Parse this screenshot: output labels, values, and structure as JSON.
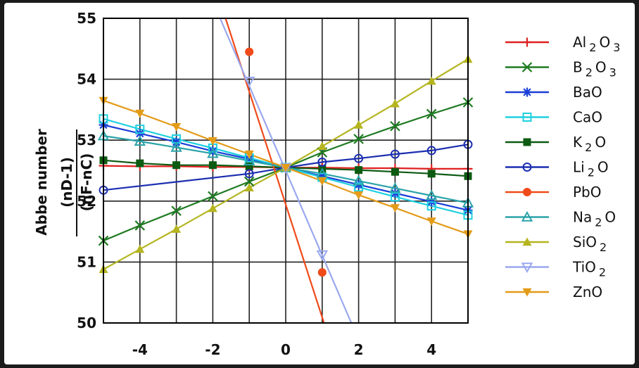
{
  "chart_data": {
    "type": "line",
    "xlim": [
      -5,
      5
    ],
    "ylim": [
      50,
      55
    ],
    "xticks": [
      -4,
      -2,
      0,
      2,
      4
    ],
    "yticks": [
      50,
      51,
      52,
      53,
      54,
      55
    ],
    "xtick_labels": [
      "-4",
      "-2",
      "0",
      "2",
      "4"
    ],
    "ytick_labels": [
      "50",
      "51",
      "52",
      "53",
      "54",
      "55"
    ],
    "ylabel_main": "Abbe number",
    "ylabel_fraction_numerator": "(nD-1)",
    "ylabel_fraction_denominator": "(nF-nC)",
    "grid": true,
    "legend_position": "right",
    "x": [
      -5,
      -4,
      -3,
      -2,
      -1,
      0,
      1,
      2,
      3,
      4,
      5
    ],
    "series": [
      {
        "name": "Al2O3",
        "color": "#e02020",
        "marker": "plus",
        "points": [
          [
            -5,
            52.58
          ],
          [
            -4,
            52.57
          ],
          [
            -3,
            52.57
          ],
          [
            -2,
            52.56
          ],
          [
            -1,
            52.56
          ],
          [
            0,
            52.55
          ],
          [
            1,
            52.55
          ],
          [
            2,
            52.54
          ],
          [
            3,
            52.54
          ],
          [
            4,
            52.53
          ],
          [
            5,
            52.53
          ]
        ]
      },
      {
        "name": "B2O3",
        "color": "#1f7a22",
        "marker": "x",
        "points": [
          [
            -5,
            51.35
          ],
          [
            -4,
            51.6
          ],
          [
            -3,
            51.84
          ],
          [
            -2,
            52.08
          ],
          [
            -1,
            52.32
          ],
          [
            0,
            52.55
          ],
          [
            1,
            52.8
          ],
          [
            2,
            53.02
          ],
          [
            3,
            53.23
          ],
          [
            4,
            53.43
          ],
          [
            5,
            53.62
          ]
        ]
      },
      {
        "name": "BaO",
        "color": "#1a3fd6",
        "marker": "star",
        "points": [
          [
            -5,
            53.25
          ],
          [
            -4,
            53.11
          ],
          [
            -3,
            52.97
          ],
          [
            -2,
            52.82
          ],
          [
            -1,
            52.69
          ],
          [
            0,
            52.55
          ],
          [
            1,
            52.41
          ],
          [
            2,
            52.27
          ],
          [
            3,
            52.13
          ],
          [
            4,
            51.99
          ],
          [
            5,
            51.85
          ]
        ]
      },
      {
        "name": "CaO",
        "color": "#1fd0e0",
        "marker": "square-open",
        "points": [
          [
            -5,
            53.35
          ],
          [
            -4,
            53.18
          ],
          [
            -3,
            53.02
          ],
          [
            -2,
            52.87
          ],
          [
            -1,
            52.71
          ],
          [
            0,
            52.55
          ],
          [
            1,
            52.39
          ],
          [
            2,
            52.23
          ],
          [
            3,
            52.07
          ],
          [
            4,
            51.92
          ],
          [
            5,
            51.77
          ]
        ]
      },
      {
        "name": "K2O",
        "color": "#0d5a12",
        "marker": "square",
        "points": [
          [
            -5,
            52.67
          ],
          [
            -4,
            52.62
          ],
          [
            -3,
            52.59
          ],
          [
            -2,
            52.59
          ],
          [
            -1,
            52.57
          ],
          [
            0,
            52.55
          ],
          [
            1,
            52.53
          ],
          [
            2,
            52.51
          ],
          [
            3,
            52.48
          ],
          [
            4,
            52.45
          ],
          [
            5,
            52.41
          ]
        ]
      },
      {
        "name": "Li2O",
        "color": "#1c2fb0",
        "marker": "circle-open",
        "points": [
          [
            -5,
            52.18
          ],
          [
            -1,
            52.45
          ],
          [
            0,
            52.55
          ],
          [
            1,
            52.64
          ],
          [
            2,
            52.7
          ],
          [
            3,
            52.77
          ],
          [
            4,
            52.83
          ],
          [
            5,
            52.93
          ]
        ]
      },
      {
        "name": "PbO",
        "color": "#f04a1a",
        "marker": "circle",
        "points": [
          [
            -1,
            54.45
          ],
          [
            0,
            52.55
          ],
          [
            1,
            50.83
          ]
        ]
      },
      {
        "name": "Na2O",
        "color": "#2aa3a8",
        "marker": "triangle-open",
        "points": [
          [
            -5,
            53.07
          ],
          [
            -4,
            52.98
          ],
          [
            -3,
            52.88
          ],
          [
            -2,
            52.78
          ],
          [
            -1,
            52.66
          ],
          [
            0,
            52.55
          ],
          [
            1,
            52.45
          ],
          [
            2,
            52.33
          ],
          [
            3,
            52.21
          ],
          [
            4,
            52.09
          ],
          [
            5,
            51.97
          ]
        ]
      },
      {
        "name": "SiO2",
        "color": "#b5b520",
        "marker": "triangle",
        "points": [
          [
            -5,
            50.88
          ],
          [
            -4,
            51.21
          ],
          [
            -3,
            51.54
          ],
          [
            -2,
            51.88
          ],
          [
            -1,
            52.22
          ],
          [
            0,
            52.55
          ],
          [
            1,
            52.9
          ],
          [
            2,
            53.25
          ],
          [
            3,
            53.6
          ],
          [
            4,
            53.97
          ],
          [
            5,
            54.33
          ]
        ]
      },
      {
        "name": "TiO2",
        "color": "#9aa8ee",
        "marker": "triangle-down-open",
        "points": [
          [
            -1,
            53.97
          ],
          [
            0,
            52.55
          ],
          [
            1,
            51.12
          ]
        ]
      },
      {
        "name": "ZnO",
        "color": "#e39b18",
        "marker": "triangle-down",
        "points": [
          [
            -5,
            53.65
          ],
          [
            -4,
            53.44
          ],
          [
            -3,
            53.22
          ],
          [
            -2,
            52.99
          ],
          [
            -1,
            52.77
          ],
          [
            0,
            52.55
          ],
          [
            1,
            52.33
          ],
          [
            2,
            52.1
          ],
          [
            3,
            51.89
          ],
          [
            4,
            51.67
          ],
          [
            5,
            51.46
          ]
        ]
      }
    ],
    "fit_lines": [
      {
        "series": "PbO",
        "from": [
          -1.65,
          55
        ],
        "to": [
          1.05,
          50
        ]
      },
      {
        "series": "TiO2",
        "from": [
          -1.8,
          55
        ],
        "to": [
          1.8,
          50
        ]
      }
    ],
    "legend": [
      {
        "base": "Al",
        "sub": "2",
        "tail": "O",
        "sub2": "3"
      },
      {
        "base": "B",
        "sub": "2",
        "tail": "O",
        "sub2": "3"
      },
      {
        "base": "BaO",
        "sub": "",
        "tail": "",
        "sub2": ""
      },
      {
        "base": "CaO",
        "sub": "",
        "tail": "",
        "sub2": ""
      },
      {
        "base": "K",
        "sub": "2",
        "tail": "O",
        "sub2": ""
      },
      {
        "base": "Li",
        "sub": "2",
        "tail": "O",
        "sub2": ""
      },
      {
        "base": "PbO",
        "sub": "",
        "tail": "",
        "sub2": ""
      },
      {
        "base": "Na",
        "sub": "2",
        "tail": "O",
        "sub2": ""
      },
      {
        "base": "SiO",
        "sub": "2",
        "tail": "",
        "sub2": ""
      },
      {
        "base": "TiO",
        "sub": "2",
        "tail": "",
        "sub2": ""
      },
      {
        "base": "ZnO",
        "sub": "",
        "tail": "",
        "sub2": ""
      }
    ]
  }
}
